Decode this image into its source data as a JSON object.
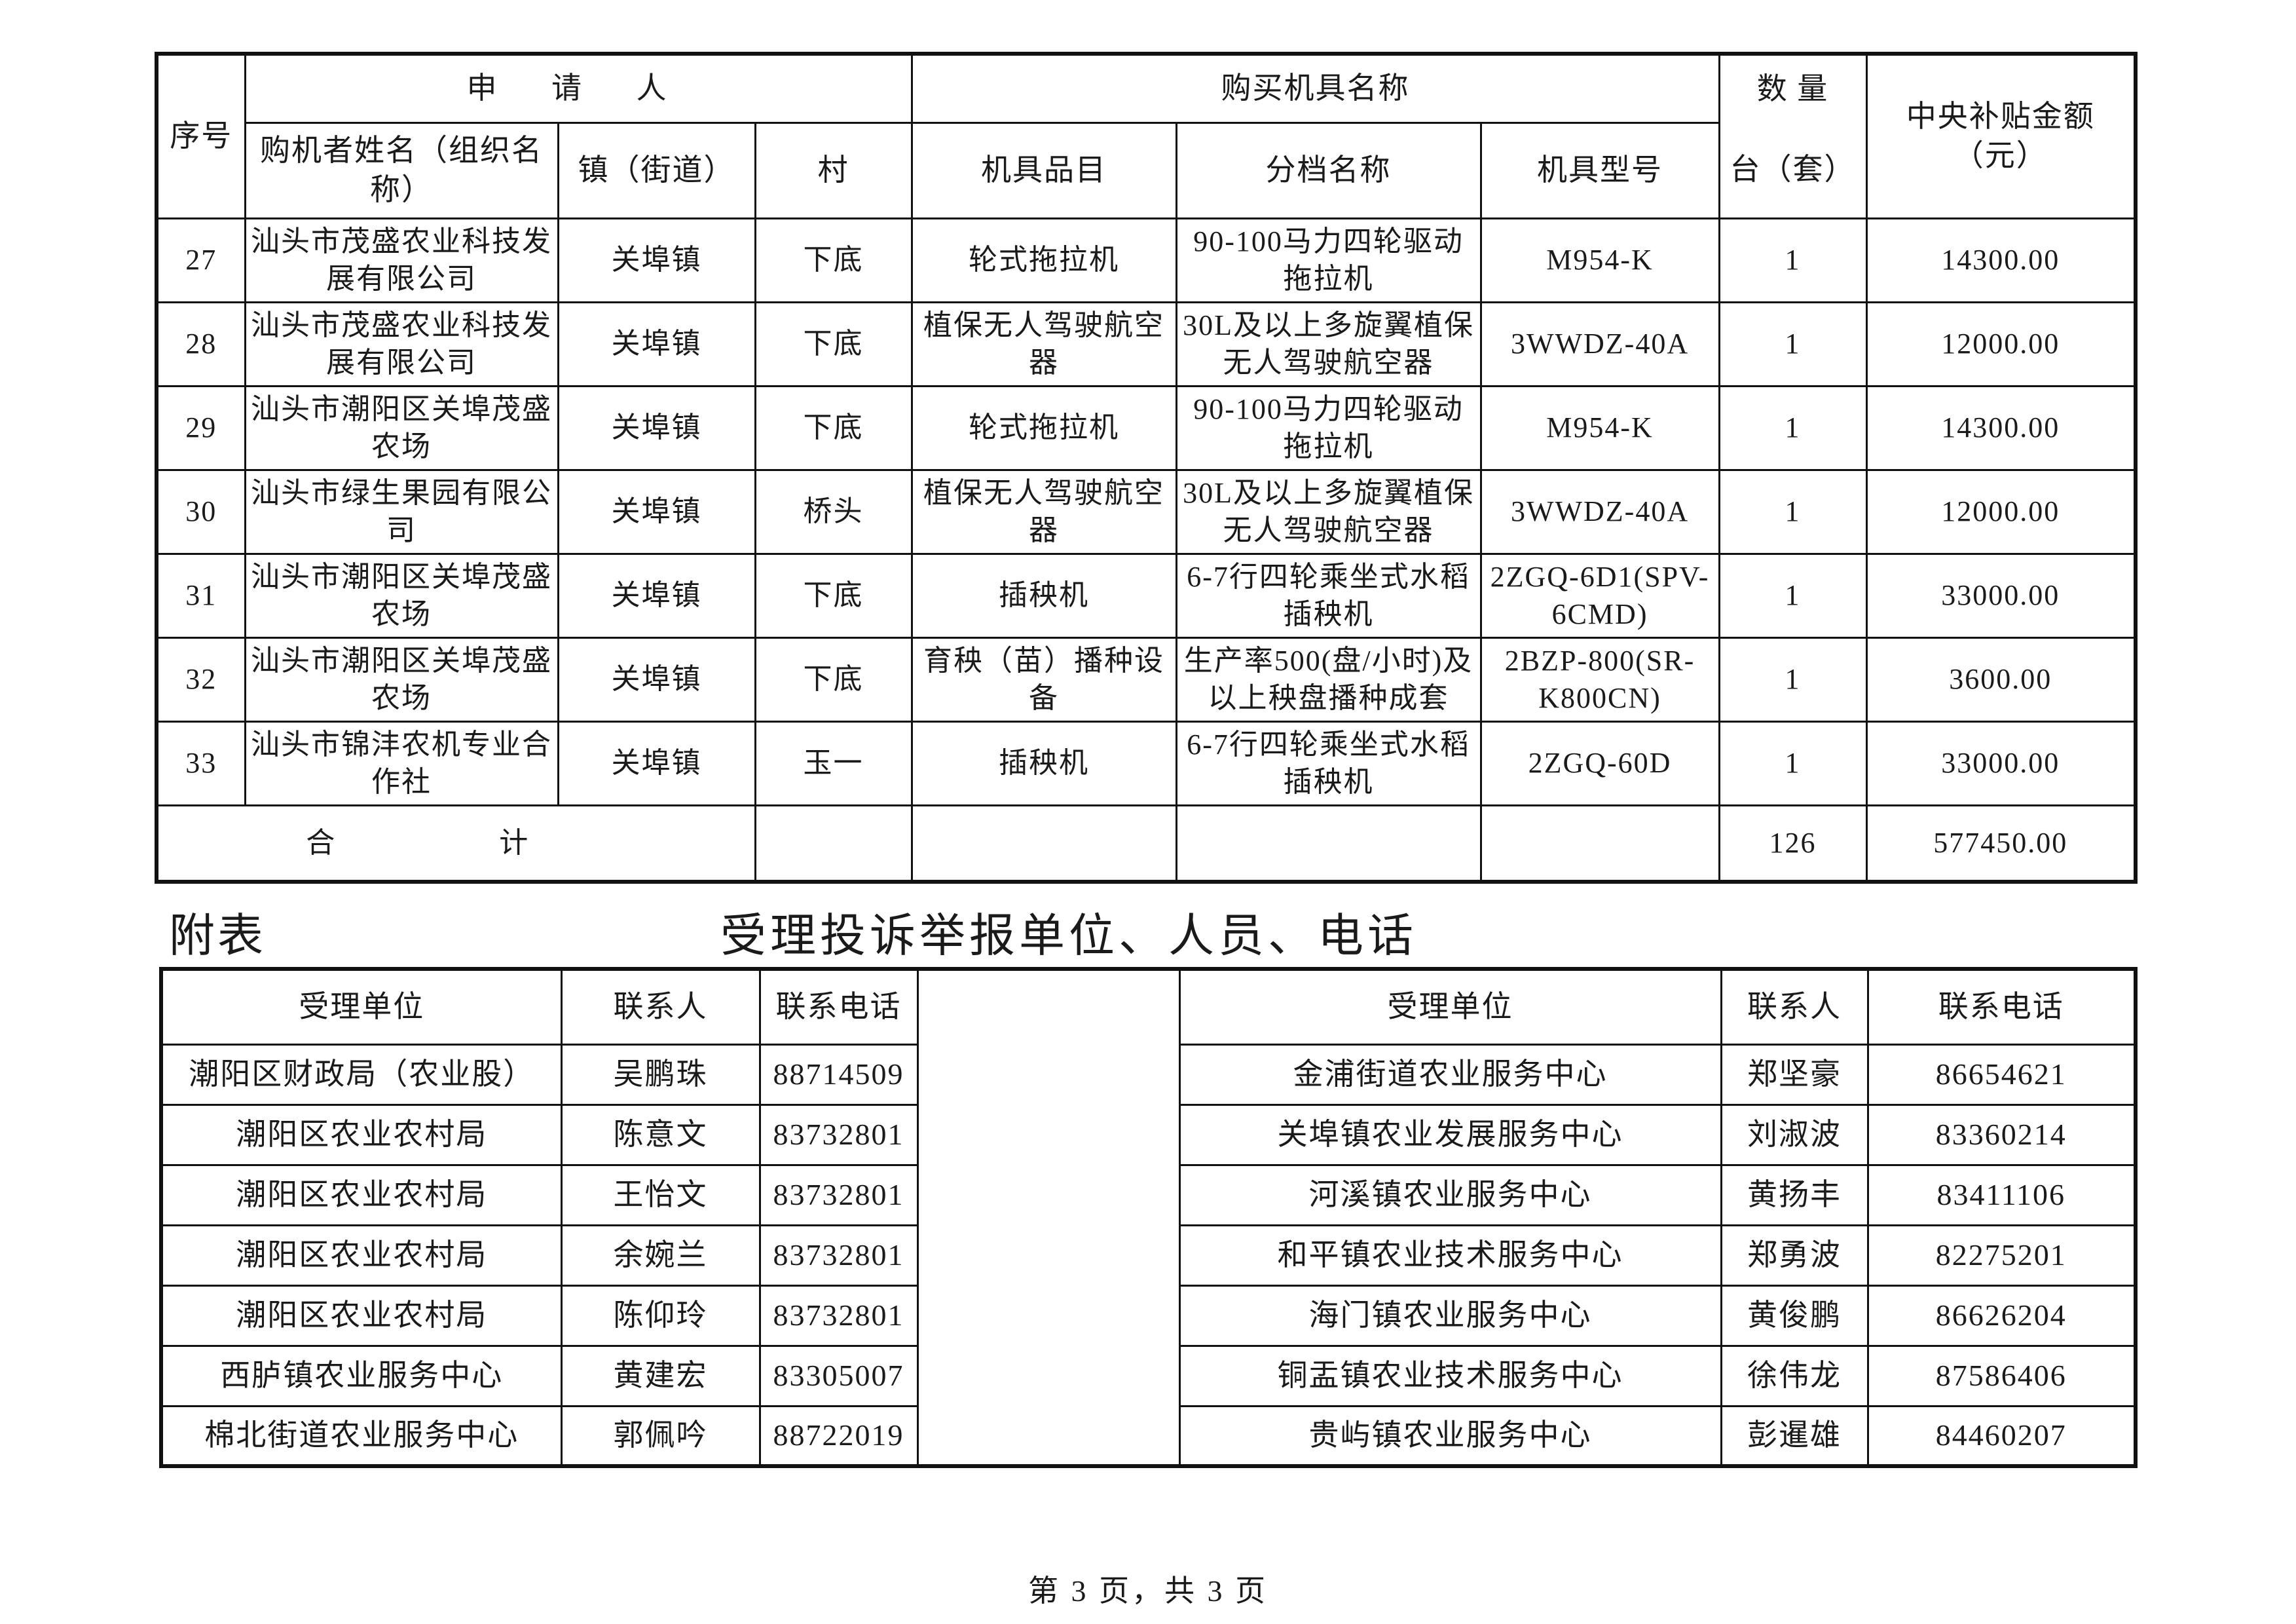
{
  "table1": {
    "headers": {
      "seq": "序号",
      "applicant": "申 请 人",
      "machine": "购买机具名称",
      "qty_top": "数 量",
      "qty_unit": "台（套）",
      "amount": "中央补贴金额（元）",
      "buyer": "购机者姓名（组织名称）",
      "town": "镇（街道）",
      "village": "村",
      "item": "机具品目",
      "grade": "分档名称",
      "model": "机具型号"
    },
    "rows": [
      {
        "seq": "27",
        "buyer": "汕头市茂盛农业科技发展有限公司",
        "town": "关埠镇",
        "village": "下底",
        "item": "轮式拖拉机",
        "grade": "90-100马力四轮驱动拖拉机",
        "model": "M954-K",
        "qty": "1",
        "amount": "14300.00"
      },
      {
        "seq": "28",
        "buyer": "汕头市茂盛农业科技发展有限公司",
        "town": "关埠镇",
        "village": "下底",
        "item": "植保无人驾驶航空器",
        "grade": "30L及以上多旋翼植保无人驾驶航空器",
        "model": "3WWDZ-40A",
        "qty": "1",
        "amount": "12000.00"
      },
      {
        "seq": "29",
        "buyer": "汕头市潮阳区关埠茂盛农场",
        "town": "关埠镇",
        "village": "下底",
        "item": "轮式拖拉机",
        "grade": "90-100马力四轮驱动拖拉机",
        "model": "M954-K",
        "qty": "1",
        "amount": "14300.00"
      },
      {
        "seq": "30",
        "buyer": "汕头市绿生果园有限公司",
        "town": "关埠镇",
        "village": "桥头",
        "item": "植保无人驾驶航空器",
        "grade": "30L及以上多旋翼植保无人驾驶航空器",
        "model": "3WWDZ-40A",
        "qty": "1",
        "amount": "12000.00"
      },
      {
        "seq": "31",
        "buyer": "汕头市潮阳区关埠茂盛农场",
        "town": "关埠镇",
        "village": "下底",
        "item": "插秧机",
        "grade": "6-7行四轮乘坐式水稻插秧机",
        "model": "2ZGQ-6D1(SPV-6CMD)",
        "qty": "1",
        "amount": "33000.00"
      },
      {
        "seq": "32",
        "buyer": "汕头市潮阳区关埠茂盛农场",
        "town": "关埠镇",
        "village": "下底",
        "item": "育秧（苗）播种设备",
        "grade": "生产率500(盘/小时)及以上秧盘播种成套",
        "model": "2BZP-800(SR-K800CN)",
        "qty": "1",
        "amount": "3600.00"
      },
      {
        "seq": "33",
        "buyer": "汕头市锦沣农机专业合作社",
        "town": "关埠镇",
        "village": "玉一",
        "item": "插秧机",
        "grade": "6-7行四轮乘坐式水稻插秧机",
        "model": "2ZGQ-60D",
        "qty": "1",
        "amount": "33000.00"
      }
    ],
    "total": {
      "label": "合 计",
      "qty": "126",
      "amount": "577450.00"
    }
  },
  "annex": {
    "label": "附表",
    "title": "受理投诉举报单位、人员、电话",
    "headers": {
      "unit": "受理单位",
      "contact": "联系人",
      "phone": "联系电话"
    },
    "left": [
      {
        "unit": "潮阳区财政局（农业股）",
        "contact": "吴鹏珠",
        "phone": "88714509"
      },
      {
        "unit": "潮阳区农业农村局",
        "contact": "陈意文",
        "phone": "83732801"
      },
      {
        "unit": "潮阳区农业农村局",
        "contact": "王怡文",
        "phone": "83732801"
      },
      {
        "unit": "潮阳区农业农村局",
        "contact": "余婉兰",
        "phone": "83732801"
      },
      {
        "unit": "潮阳区农业农村局",
        "contact": "陈仰玲",
        "phone": "83732801"
      },
      {
        "unit": "西胪镇农业服务中心",
        "contact": "黄建宏",
        "phone": "83305007"
      },
      {
        "unit": "棉北街道农业服务中心",
        "contact": "郭佩吟",
        "phone": "88722019"
      }
    ],
    "right": [
      {
        "unit": "金浦街道农业服务中心",
        "contact": "郑坚豪",
        "phone": "86654621"
      },
      {
        "unit": "关埠镇农业发展服务中心",
        "contact": "刘淑波",
        "phone": "83360214"
      },
      {
        "unit": "河溪镇农业服务中心",
        "contact": "黄扬丰",
        "phone": "83411106"
      },
      {
        "unit": "和平镇农业技术服务中心",
        "contact": "郑勇波",
        "phone": "82275201"
      },
      {
        "unit": "海门镇农业服务中心",
        "contact": "黄俊鹏",
        "phone": "86626204"
      },
      {
        "unit": "铜盂镇农业技术服务中心",
        "contact": "徐伟龙",
        "phone": "87586406"
      },
      {
        "unit": "贵屿镇农业服务中心",
        "contact": "彭暹雄",
        "phone": "84460207"
      }
    ]
  },
  "footer": {
    "page": "第 3 页，共 3 页"
  }
}
